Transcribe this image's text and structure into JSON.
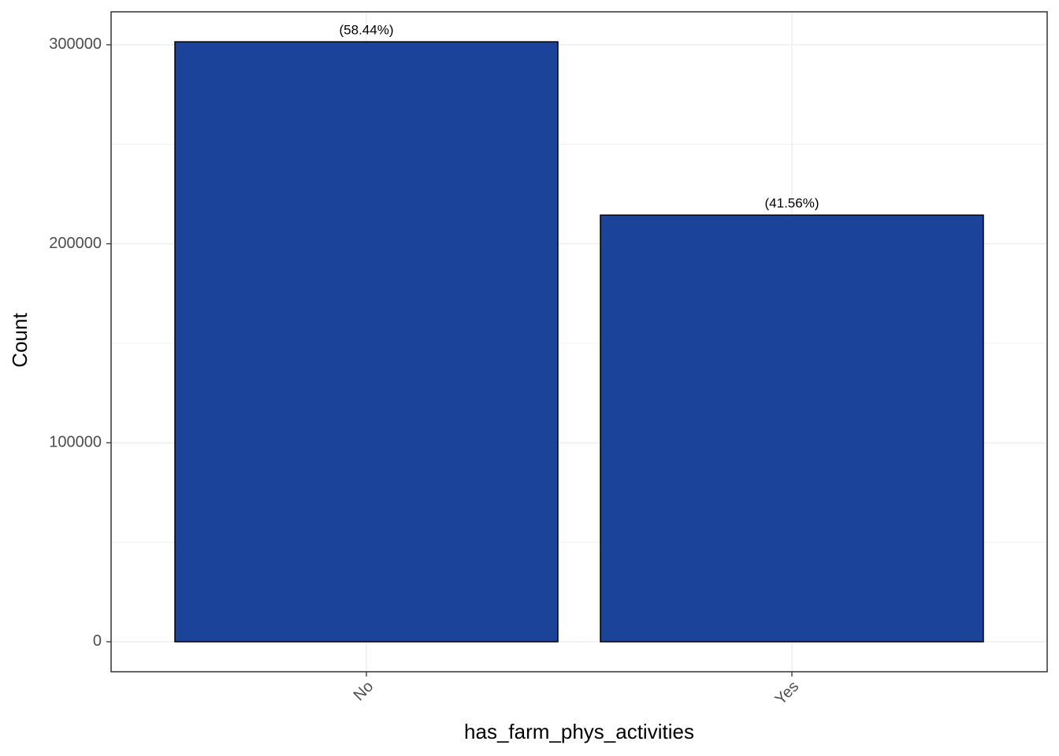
{
  "chart_data": {
    "type": "bar",
    "x_label": "has_farm_phys_activities",
    "y_label": "Count",
    "categories": [
      "No",
      "Yes"
    ],
    "values": [
      301500,
      214400
    ],
    "bar_labels": [
      "(58.44%)",
      "(41.56%)"
    ],
    "color": "#1a4399",
    "edge_color": "#000000",
    "ylim": [
      -15075,
      316575
    ],
    "yticks": [
      0,
      100000,
      200000,
      300000
    ],
    "grid": true,
    "minor_grid": true
  }
}
